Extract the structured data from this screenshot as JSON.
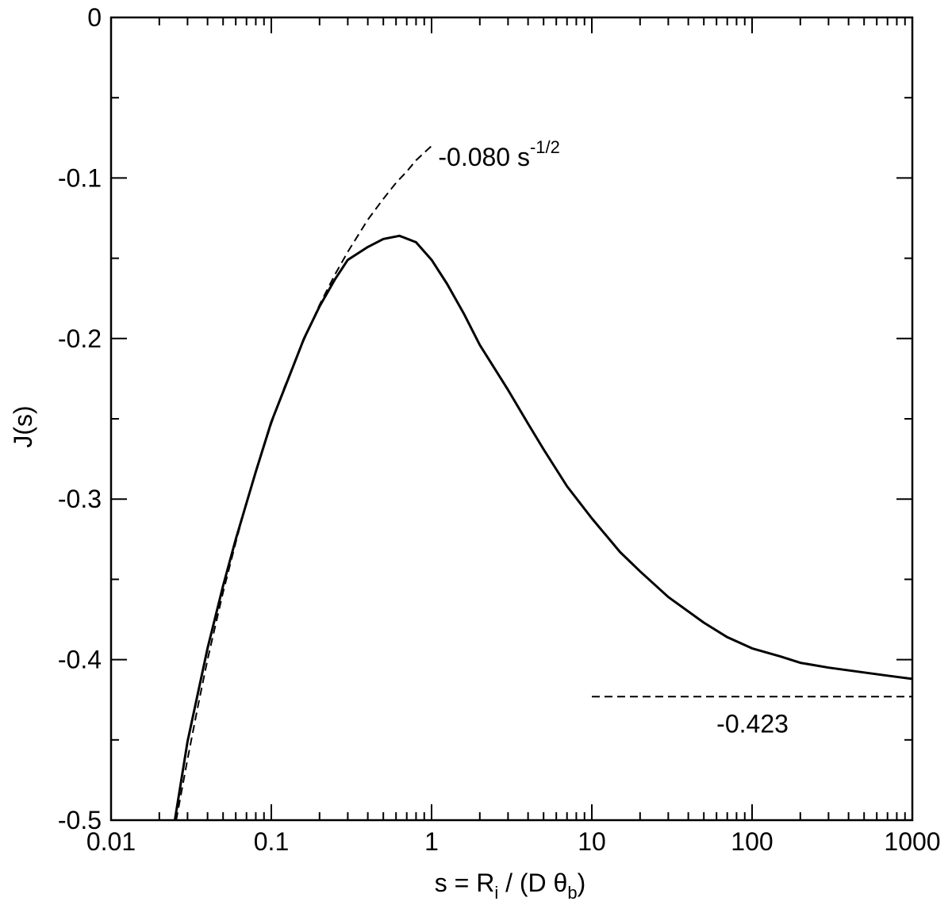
{
  "chart_data": {
    "type": "line",
    "xscale": "log",
    "xlim": [
      0.01,
      1000
    ],
    "ylim": [
      -0.5,
      0
    ],
    "grid": false,
    "legend": "none",
    "xlabel": {
      "lead": "s = R",
      "sub1": "i",
      "mid": " / (D θ",
      "sub2": "b",
      "tail": ")"
    },
    "ylabel": "J(s)",
    "x_major_ticks": [
      0.01,
      0.1,
      1,
      10,
      100,
      1000
    ],
    "x_tick_labels": [
      "0.01",
      "0.1",
      "1",
      "10",
      "100",
      "1000"
    ],
    "y_major_ticks": [
      -0.5,
      -0.4,
      -0.3,
      -0.2,
      -0.1,
      0
    ],
    "y_tick_labels": [
      "-0.5",
      "-0.4",
      "-0.3",
      "-0.2",
      "-0.1",
      "0"
    ],
    "y_minor_ticks": [
      -0.45,
      -0.35,
      -0.25,
      -0.15,
      -0.05
    ],
    "series": [
      {
        "style": "solid",
        "color": "#000000",
        "x": [
          0.025,
          0.03,
          0.04,
          0.05,
          0.06,
          0.08,
          0.1,
          0.13,
          0.16,
          0.2,
          0.25,
          0.3,
          0.4,
          0.5,
          0.63,
          0.8,
          1.0,
          1.25,
          1.6,
          2.0,
          3.0,
          4.0,
          5.0,
          7.0,
          10,
          15,
          20,
          30,
          50,
          70,
          100,
          150,
          200,
          300,
          500,
          700,
          1000
        ],
        "y": [
          -0.5,
          -0.451,
          -0.393,
          -0.354,
          -0.325,
          -0.283,
          -0.252,
          -0.223,
          -0.2,
          -0.18,
          -0.163,
          -0.151,
          -0.143,
          -0.138,
          -0.136,
          -0.14,
          -0.151,
          -0.166,
          -0.185,
          -0.204,
          -0.232,
          -0.253,
          -0.269,
          -0.292,
          -0.312,
          -0.333,
          -0.345,
          -0.361,
          -0.377,
          -0.386,
          -0.393,
          -0.398,
          -0.402,
          -0.405,
          -0.408,
          -0.41,
          -0.412
        ]
      },
      {
        "style": "dashed",
        "color": "#000000",
        "x": [
          0.0255,
          0.03,
          0.035,
          0.04,
          0.05,
          0.06,
          0.07,
          0.08,
          0.1,
          0.12,
          0.15,
          0.2,
          0.25,
          0.3,
          0.4,
          0.5,
          0.6,
          0.7,
          0.8,
          1.0
        ],
        "y": [
          -0.5,
          -0.462,
          -0.428,
          -0.4,
          -0.358,
          -0.327,
          -0.302,
          -0.283,
          -0.253,
          -0.231,
          -0.207,
          -0.179,
          -0.16,
          -0.146,
          -0.126,
          -0.113,
          -0.103,
          -0.096,
          -0.089,
          -0.08
        ]
      },
      {
        "style": "dashed",
        "color": "#000000",
        "x": [
          10,
          1000
        ],
        "y": [
          -0.423,
          -0.423
        ]
      }
    ],
    "annotations": [
      {
        "text_main": "-0.080 s",
        "text_sup": "-1/2",
        "x": 1.1,
        "y": -0.087
      },
      {
        "text_main": "-0.423",
        "x": 60,
        "y": -0.44
      }
    ]
  }
}
